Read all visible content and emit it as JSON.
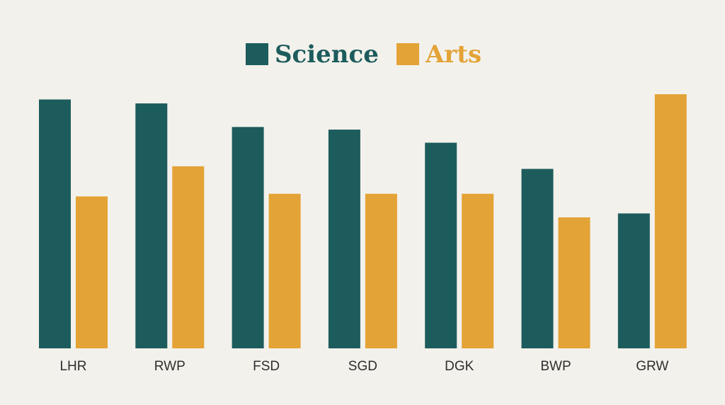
{
  "chart_data": {
    "type": "bar",
    "categories": [
      "LHR",
      "RWP",
      "FSD",
      "SGD",
      "DGK",
      "BWP",
      "GRW"
    ],
    "series": [
      {
        "name": "Science",
        "color": "#1d5c5c",
        "values": [
          95,
          93.5,
          84.5,
          83.5,
          78.5,
          68.5,
          51.5
        ]
      },
      {
        "name": "Arts",
        "color": "#e3a336",
        "values": [
          58,
          69.5,
          59,
          59,
          59,
          50,
          97
        ]
      }
    ],
    "ylim": [
      0,
      100
    ],
    "legend": "top-center",
    "grid": false
  }
}
